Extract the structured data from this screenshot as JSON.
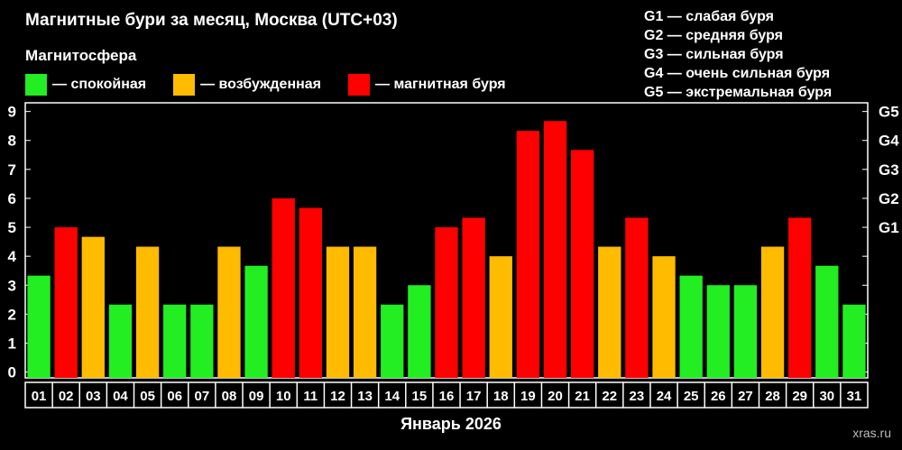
{
  "header": {
    "title": "Магнитные бури за месяц, Москва (UTC+03)",
    "subtitle": "Магнитосфера",
    "watermark": "xras.ru"
  },
  "legend": [
    {
      "label": "— спокойная",
      "color": "#22ee22"
    },
    {
      "label": "— возбужденная",
      "color": "#ffbb00"
    },
    {
      "label": "— магнитная буря",
      "color": "#ff0000"
    }
  ],
  "g_scale": [
    "G1 — слабая буря",
    "G2 — средняя буря",
    "G3 — сильная буря",
    "G4 — очень сильная буря",
    "G5 — экстремальная буря"
  ],
  "chart_data": {
    "type": "bar",
    "xlabel": "Январь 2026",
    "ylabel": "",
    "ylim": [
      -0.2,
      9.3
    ],
    "yticks": [
      0,
      1,
      2,
      3,
      4,
      5,
      6,
      7,
      8,
      9
    ],
    "right_axis": [
      {
        "value": 5,
        "label": "G1"
      },
      {
        "value": 6,
        "label": "G2"
      },
      {
        "value": 7,
        "label": "G3"
      },
      {
        "value": 8,
        "label": "G4"
      },
      {
        "value": 9,
        "label": "G5"
      }
    ],
    "categories": [
      "01",
      "02",
      "03",
      "04",
      "05",
      "06",
      "07",
      "08",
      "09",
      "10",
      "11",
      "12",
      "13",
      "14",
      "15",
      "16",
      "17",
      "18",
      "19",
      "20",
      "21",
      "22",
      "23",
      "24",
      "25",
      "26",
      "27",
      "28",
      "29",
      "30",
      "31"
    ],
    "values": [
      3.33,
      5.0,
      4.67,
      2.33,
      4.33,
      2.33,
      2.33,
      4.33,
      3.67,
      6.0,
      5.67,
      4.33,
      4.33,
      2.33,
      3.0,
      5.0,
      5.33,
      4.0,
      8.33,
      8.67,
      7.67,
      4.33,
      5.33,
      4.0,
      3.33,
      3.0,
      3.0,
      4.33,
      5.33,
      3.67,
      2.33
    ],
    "bar_status": [
      "calm",
      "storm",
      "excited",
      "calm",
      "excited",
      "calm",
      "calm",
      "excited",
      "calm",
      "storm",
      "storm",
      "excited",
      "excited",
      "calm",
      "calm",
      "storm",
      "storm",
      "excited",
      "storm",
      "storm",
      "storm",
      "excited",
      "storm",
      "excited",
      "calm",
      "calm",
      "calm",
      "excited",
      "storm",
      "calm",
      "calm"
    ],
    "colors": {
      "calm": "#22ee22",
      "excited": "#ffbb00",
      "storm": "#ff0000"
    },
    "grid": false
  }
}
